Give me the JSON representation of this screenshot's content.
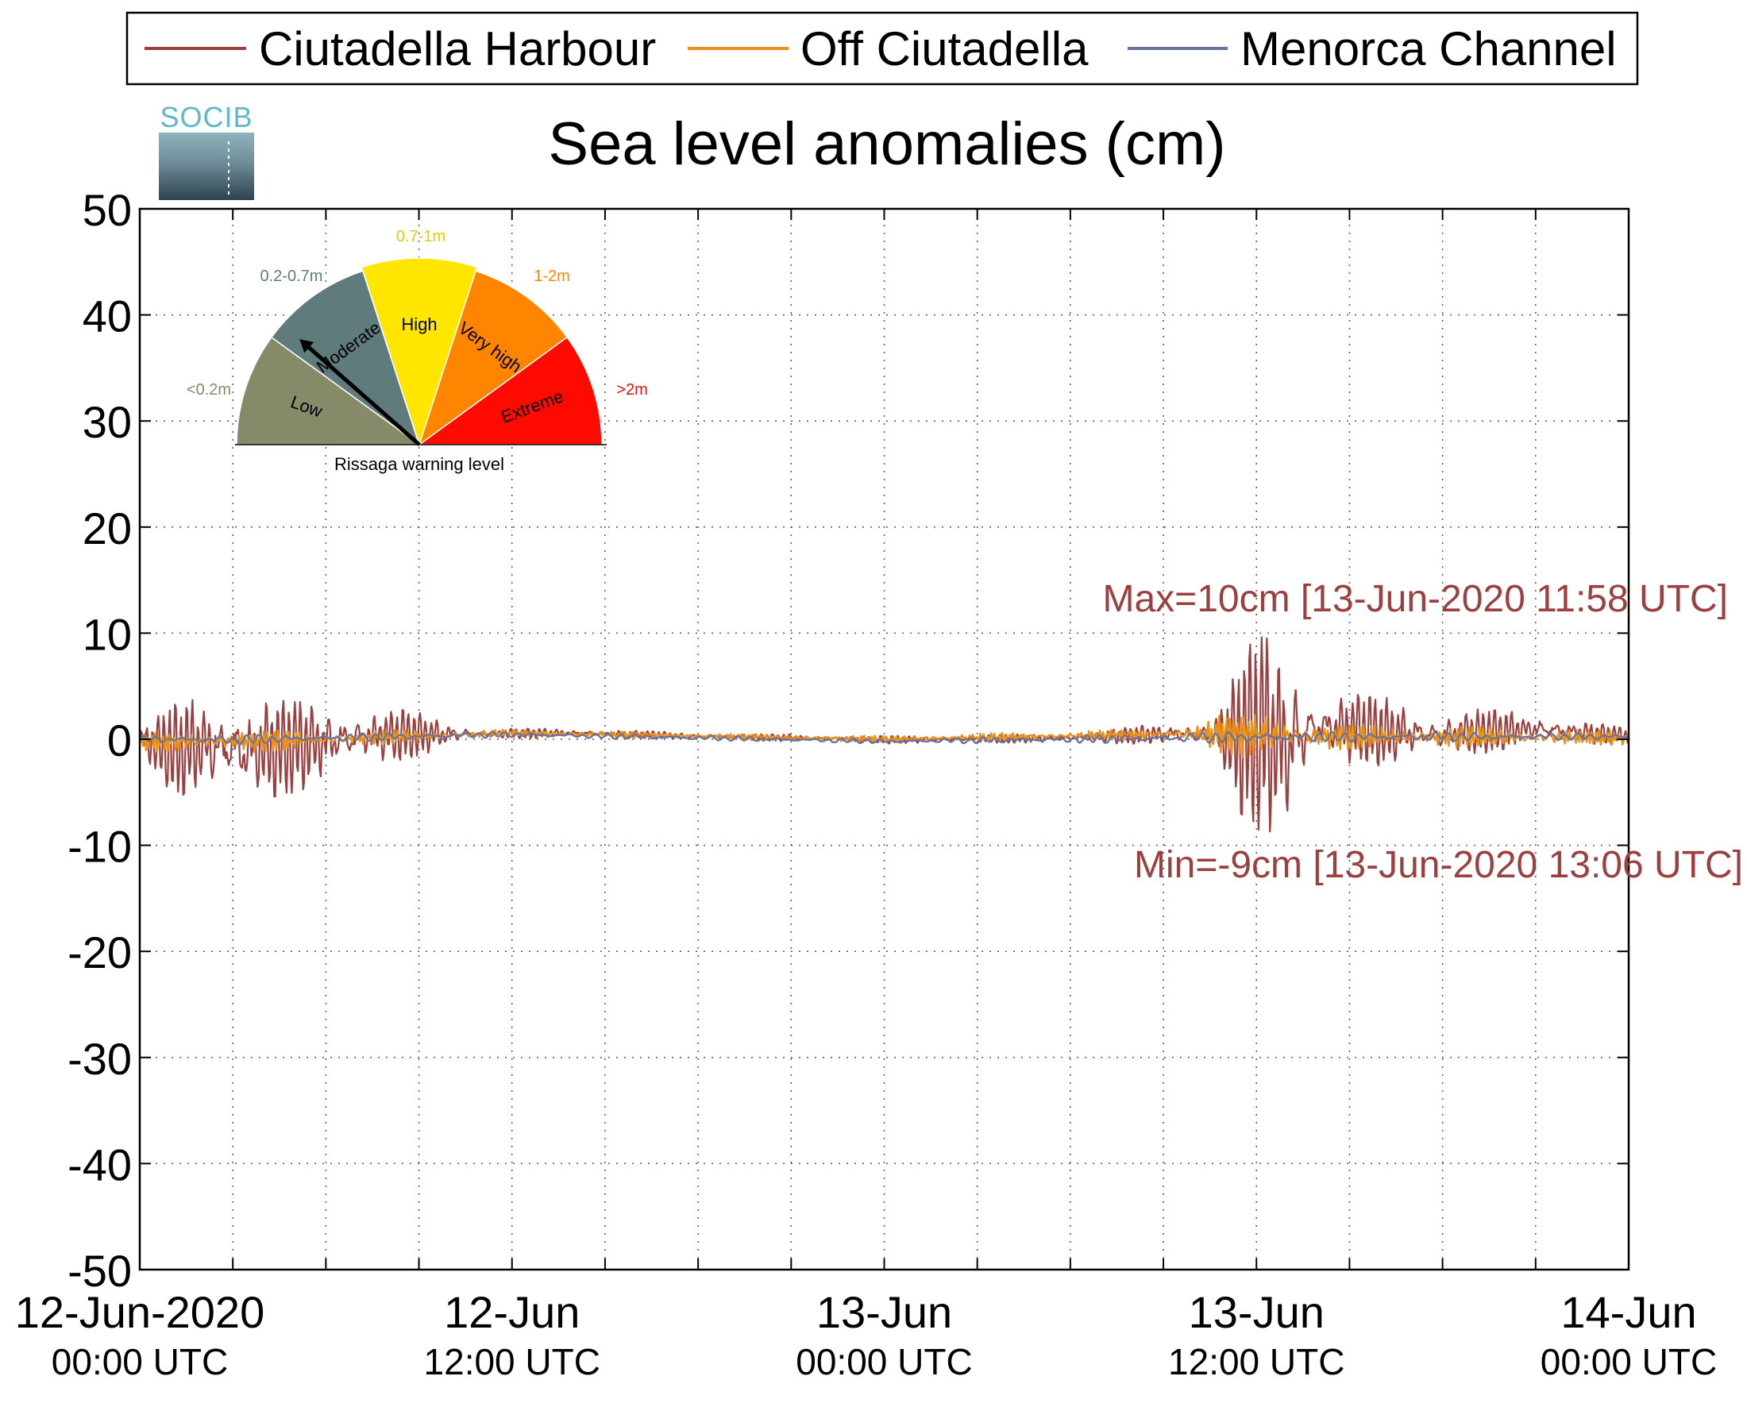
{
  "chart_data": {
    "type": "line",
    "title": "Sea level anomalies (cm)",
    "ylim": [
      -50,
      50
    ],
    "yticks": [
      -50,
      -40,
      -30,
      -20,
      -10,
      0,
      10,
      20,
      30,
      40,
      50
    ],
    "xlim": [
      "2020-06-12T00:00",
      "2020-06-14T00:00"
    ],
    "xtick_labels": [
      {
        "t": "2020-06-12T00:00",
        "date": "12-Jun-2020",
        "time": "00:00 UTC"
      },
      {
        "t": "2020-06-12T12:00",
        "date": "12-Jun",
        "time": "12:00 UTC"
      },
      {
        "t": "2020-06-13T00:00",
        "date": "13-Jun",
        "time": "00:00 UTC"
      },
      {
        "t": "2020-06-13T12:00",
        "date": "13-Jun",
        "time": "12:00 UTC"
      },
      {
        "t": "2020-06-14T00:00",
        "date": "14-Jun",
        "time": "00:00 UTC"
      }
    ],
    "grid": true,
    "legend_position": "top",
    "series": [
      {
        "name": "Ciutadella Harbour",
        "color": "#9b3f3f",
        "envelope": [
          {
            "t": "2020-06-12T00:00",
            "min": -1,
            "max": 1
          },
          {
            "t": "2020-06-12T01:00",
            "min": -5,
            "max": 3
          },
          {
            "t": "2020-06-12T02:00",
            "min": -6.5,
            "max": 5
          },
          {
            "t": "2020-06-12T03:30",
            "min": -6,
            "max": 4
          },
          {
            "t": "2020-06-12T05:00",
            "min": -5,
            "max": 3.5
          },
          {
            "t": "2020-06-12T07:00",
            "min": -3,
            "max": 3.5
          },
          {
            "t": "2020-06-12T09:00",
            "min": -1.5,
            "max": 2.5
          },
          {
            "t": "2020-06-12T11:00",
            "min": 0,
            "max": 1
          },
          {
            "t": "2020-06-12T14:00",
            "min": 0.2,
            "max": 1
          },
          {
            "t": "2020-06-12T18:00",
            "min": 0,
            "max": 0.6
          },
          {
            "t": "2020-06-13T00:00",
            "min": -0.4,
            "max": 0.3
          },
          {
            "t": "2020-06-13T06:00",
            "min": -0.3,
            "max": 0.5
          },
          {
            "t": "2020-06-13T09:00",
            "min": -0.5,
            "max": 1.5
          },
          {
            "t": "2020-06-13T10:30",
            "min": -1,
            "max": 2
          },
          {
            "t": "2020-06-13T11:30",
            "min": -7,
            "max": 7
          },
          {
            "t": "2020-06-13T11:58",
            "min": -8.5,
            "max": 10
          },
          {
            "t": "2020-06-13T13:06",
            "min": -9,
            "max": 8.5
          },
          {
            "t": "2020-06-13T14:00",
            "min": -2,
            "max": 4.5
          },
          {
            "t": "2020-06-13T16:00",
            "min": -2.5,
            "max": 4
          },
          {
            "t": "2020-06-13T18:00",
            "min": -2,
            "max": 3
          },
          {
            "t": "2020-06-13T21:00",
            "min": -0.5,
            "max": 2.5
          },
          {
            "t": "2020-06-14T00:00",
            "min": -0.5,
            "max": 1
          }
        ]
      },
      {
        "name": "Off Ciutadella",
        "color": "#e8921c",
        "envelope": [
          {
            "t": "2020-06-12T00:00",
            "min": -1,
            "max": 0.5
          },
          {
            "t": "2020-06-12T02:00",
            "min": -1.5,
            "max": 1
          },
          {
            "t": "2020-06-12T06:00",
            "min": -0.8,
            "max": 0.8
          },
          {
            "t": "2020-06-12T12:00",
            "min": 0.3,
            "max": 0.9
          },
          {
            "t": "2020-06-13T00:00",
            "min": -0.3,
            "max": 0.3
          },
          {
            "t": "2020-06-13T09:00",
            "min": 0,
            "max": 1
          },
          {
            "t": "2020-06-13T11:58",
            "min": -2,
            "max": 3
          },
          {
            "t": "2020-06-13T14:00",
            "min": -1,
            "max": 1.5
          },
          {
            "t": "2020-06-14T00:00",
            "min": -0.5,
            "max": 0.8
          }
        ]
      },
      {
        "name": "Menorca Channel",
        "color": "#6a74a0",
        "envelope": [
          {
            "t": "2020-06-12T00:00",
            "min": -0.3,
            "max": 0.3
          },
          {
            "t": "2020-06-12T03:00",
            "min": -0.5,
            "max": 0.4
          },
          {
            "t": "2020-06-12T12:00",
            "min": 0.2,
            "max": 0.7
          },
          {
            "t": "2020-06-13T00:00",
            "min": -0.4,
            "max": 0
          },
          {
            "t": "2020-06-13T12:00",
            "min": -0.3,
            "max": 0.7
          },
          {
            "t": "2020-06-14T00:00",
            "min": 0,
            "max": 0.5
          }
        ]
      }
    ],
    "annotations": [
      {
        "text": "Max=10cm [13-Jun-2020 11:58 UTC]",
        "t": "2020-06-13T11:58",
        "value": 10,
        "color": "#9b3f3f"
      },
      {
        "text": "Min=-9cm [13-Jun-2020 13:06 UTC]",
        "t": "2020-06-13T13:06",
        "value": -9,
        "color": "#9b3f3f"
      }
    ]
  },
  "logo": {
    "text": "SOCIB"
  },
  "gauge": {
    "caption": "Rissaga warning level",
    "current_level": "Moderate",
    "levels": [
      {
        "name": "Low",
        "range": "<0.2m",
        "color": "#858a68",
        "range_color": "#858a68"
      },
      {
        "name": "Moderate",
        "range": "0.2-0.7m",
        "color": "#5f7b7b",
        "range_color": "#5f7b7b"
      },
      {
        "name": "High",
        "range": "0.7-1m",
        "color": "#ffe600",
        "range_color": "#f0c800"
      },
      {
        "name": "Very high",
        "range": "1-2m",
        "color": "#ff8500",
        "range_color": "#ff8500"
      },
      {
        "name": "Extreme",
        "range": ">2m",
        "color": "#ff0a00",
        "range_color": "#ff0a00"
      }
    ]
  }
}
